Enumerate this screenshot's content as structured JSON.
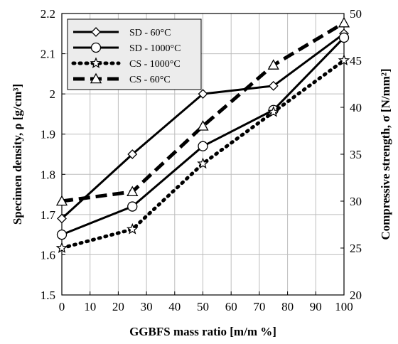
{
  "chart_data": {
    "type": "line",
    "title": "",
    "xlabel": "GGBFS mass ratio [m/m %]",
    "ylabel_left": "Specimen density, ρ [g/cm³]",
    "ylabel_right": "Compressive strength, σ [N/mm²]",
    "xlim": [
      0,
      100
    ],
    "ylim_left": [
      1.5,
      2.2
    ],
    "ylim_right": [
      20,
      50
    ],
    "x_ticks": [
      "0",
      "10",
      "20",
      "30",
      "40",
      "50",
      "60",
      "70",
      "80",
      "90",
      "100"
    ],
    "y_left_ticks": [
      "1.5",
      "1.6",
      "1.7",
      "1.8",
      "1.9",
      "2",
      "2.1",
      "2.2"
    ],
    "y_right_ticks": [
      "20",
      "25",
      "30",
      "35",
      "40",
      "45",
      "50"
    ],
    "grid": true,
    "legend_position": "top-left",
    "x": [
      0,
      25,
      50,
      75,
      100
    ],
    "series": [
      {
        "name": "SD - 60°C",
        "axis": "left",
        "values": [
          1.69,
          1.85,
          2.0,
          2.02,
          2.15
        ],
        "line": "solid",
        "marker": "diamond"
      },
      {
        "name": "SD - 1000°C",
        "axis": "left",
        "values": [
          1.65,
          1.72,
          1.87,
          1.96,
          2.14
        ],
        "line": "solid",
        "marker": "circle"
      },
      {
        "name": "CS - 1000°C",
        "axis": "right",
        "values": [
          25,
          27,
          34,
          39.5,
          45
        ],
        "line": "dotted",
        "marker": "star"
      },
      {
        "name": "CS - 60°C",
        "axis": "right",
        "values": [
          30,
          31,
          38,
          44.5,
          49
        ],
        "line": "dashed",
        "marker": "triangle"
      }
    ],
    "colors": {
      "line": "#000000",
      "grid": "#bdbdbd",
      "legend_bg": "#ececec"
    }
  }
}
